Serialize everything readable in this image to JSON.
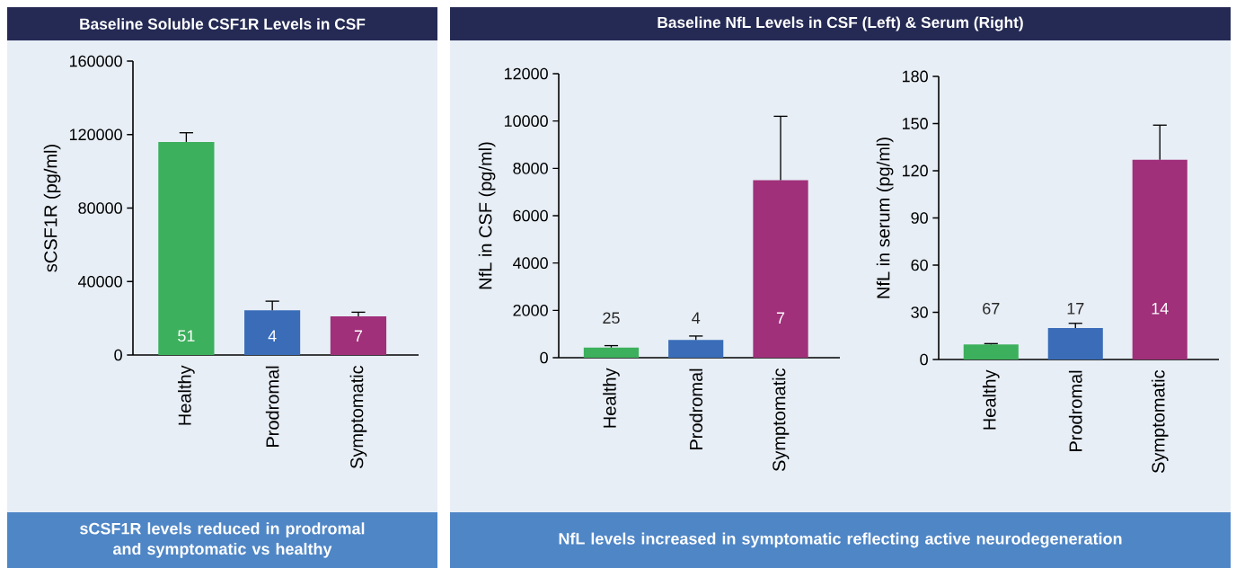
{
  "chart_data": [
    {
      "type": "bar",
      "title": "Baseline Soluble CSF1R Levels in CSF",
      "ylabel": "sCSF1R (pg/ml)",
      "categories": [
        "Healthy",
        "Prodromal",
        "Symptomatic"
      ],
      "values": [
        116000,
        24400,
        21000
      ],
      "colors": [
        "#3cb05c",
        "#3a6cb8",
        "#a0307a"
      ],
      "errors": [
        [
          116000,
          121000
        ],
        [
          24400,
          29300
        ],
        [
          21000,
          23300
        ]
      ],
      "ylim": [
        0,
        160000
      ],
      "yticks": [
        0,
        40000,
        80000,
        120000,
        160000
      ],
      "annotations": [
        "sCSF1R levels reduced in prodromal and symptomatic vs healthy",
        "51",
        "4",
        "7"
      ]
    },
    {
      "type": "bar",
      "title": "Baseline NfL Levels in CSF (Left) & Serum (Right)",
      "ylabel": "NfL in CSF (pg/ml)",
      "categories": [
        "Healthy",
        "Prodromal",
        "Symptomatic"
      ],
      "values": [
        430,
        750,
        7500
      ],
      "colors": [
        "#3cb05c",
        "#3a6cb8",
        "#a0307a"
      ],
      "errors": [
        [
          430,
          510
        ],
        [
          750,
          915
        ],
        [
          7500,
          10200
        ]
      ],
      "ylim": [
        0,
        12000
      ],
      "yticks": [
        0,
        2000,
        4000,
        6000,
        8000,
        10000,
        12000
      ],
      "annotations": [
        "NfL levels increased in symptomatic reflecting active neurodegeneration",
        "25",
        "4",
        "7"
      ]
    },
    {
      "type": "bar",
      "ylabel": "NfL in serum (pg/ml)",
      "categories": [
        "Healthy",
        "Prodromal",
        "Symptomatic"
      ],
      "values": [
        9.5,
        20,
        127
      ],
      "colors": [
        "#3cb05c",
        "#3a6cb8",
        "#a0307a"
      ],
      "errors": [
        [
          9.5,
          10.1
        ],
        [
          20,
          23
        ],
        [
          127,
          149
        ]
      ],
      "ylim": [
        0,
        180
      ],
      "yticks": [
        0,
        30,
        60,
        90,
        120,
        150,
        180
      ],
      "annotations": [
        "67",
        "17",
        "14"
      ]
    }
  ]
}
